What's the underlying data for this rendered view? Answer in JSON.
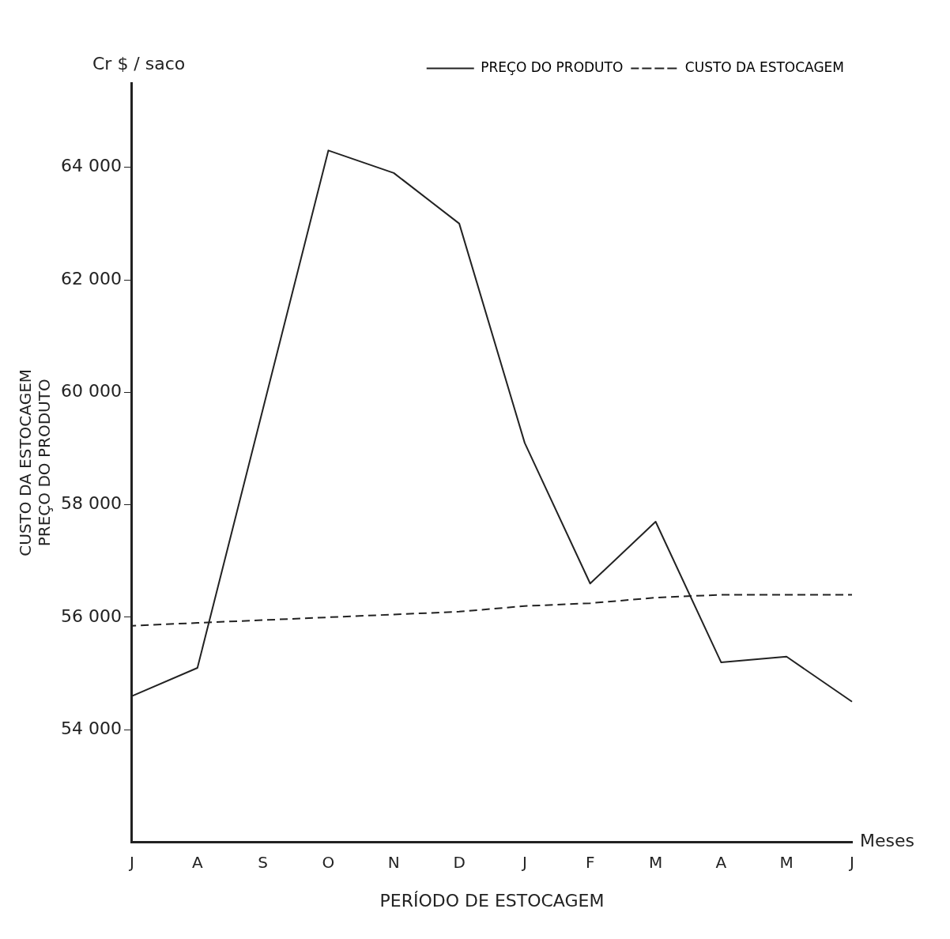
{
  "chart_data": {
    "type": "line",
    "xlabel": "PERÍODO DE ESTOCAGEM",
    "ylabel": "CUSTO DA ESTOCAGEM\nPREÇO DO PRODUTO",
    "annotations": [
      "Cr $ / saco",
      "Meses"
    ],
    "categories": [
      "J",
      "A",
      "S",
      "O",
      "N",
      "D",
      "J",
      "F",
      "M",
      "A",
      "M",
      "J"
    ],
    "series": [
      {
        "name": "PREÇO DO PRODUTO",
        "color": "#222222",
        "line_style": "solid",
        "values": [
          54600,
          55100,
          null,
          64300,
          63900,
          63000,
          59100,
          56600,
          57700,
          55200,
          55300,
          54500
        ]
      },
      {
        "name": "CUSTO DA ESTOCAGEM",
        "color": "#222222",
        "line_style": "dashed",
        "values": [
          55850,
          55900,
          55950,
          56000,
          56050,
          56100,
          56200,
          56250,
          56350,
          56400,
          56400,
          56400
        ]
      }
    ],
    "ylim": [
      52000,
      65500
    ],
    "yticks": [
      {
        "value": 54000,
        "label": "54 000"
      },
      {
        "value": 56000,
        "label": "56 000"
      },
      {
        "value": 58000,
        "label": "58 000"
      },
      {
        "value": 60000,
        "label": "60 000"
      },
      {
        "value": 62000,
        "label": "62 000"
      },
      {
        "value": 64000,
        "label": "64 000"
      }
    ],
    "grid": false,
    "legend": "top right",
    "marker": "none"
  }
}
